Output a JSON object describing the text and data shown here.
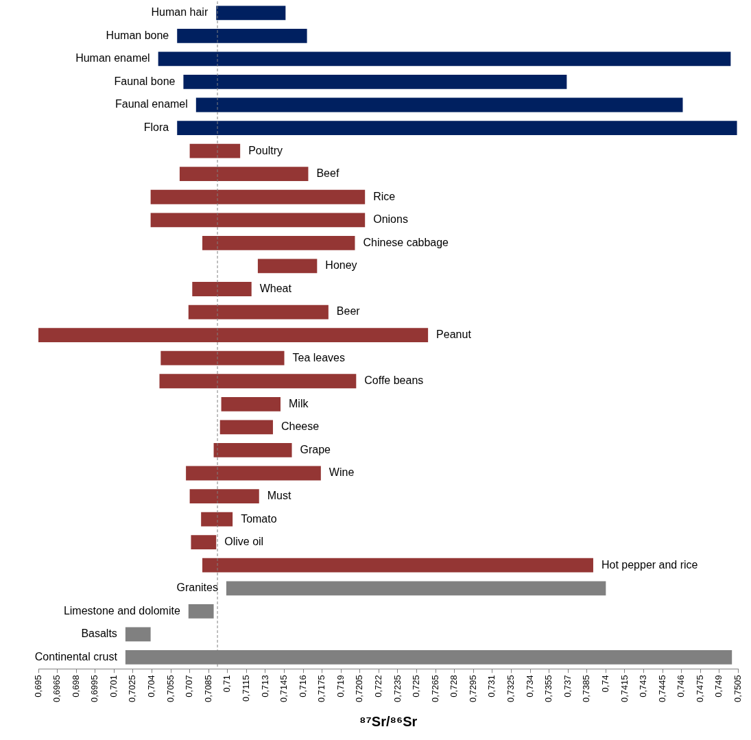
{
  "chart_data": {
    "type": "bar",
    "orientation": "horizontal",
    "xlabel": "⁸⁷Sr/⁸⁶Sr",
    "tick_labels": "x",
    "legend": false,
    "categories": [
      "Human hair",
      "Human bone",
      "Human enamel",
      "Faunal bone",
      "Faunal enamel",
      "Flora",
      "Poultry",
      "Beef",
      "Rice",
      "Onions",
      "Chinese cabbage",
      "Honey",
      "Wheat",
      "Beer",
      "Peanut",
      "Tea leaves",
      "Coffe beans",
      "Milk",
      "Cheese",
      "Grape",
      "Wine",
      "Must",
      "Tomato",
      "Olive oil",
      "Hot pepper and rice",
      "Granites",
      "Limestone and dolomite",
      "Basalts",
      "Continental crust"
    ],
    "series": [
      {
        "color": "#002060",
        "base": [
          0.7091,
          0.706,
          0.7045,
          0.7065,
          0.7075,
          0.706,
          null,
          null,
          null,
          null,
          null,
          null,
          null,
          null,
          null,
          null,
          null,
          null,
          null,
          null,
          null,
          null,
          null,
          null,
          null,
          null,
          null,
          null,
          null
        ],
        "values": [
          0.0055,
          0.0103,
          0.0454,
          0.0304,
          0.0386,
          0.0444,
          null,
          null,
          null,
          null,
          null,
          null,
          null,
          null,
          null,
          null,
          null,
          null,
          null,
          null,
          null,
          null,
          null,
          null,
          null,
          null,
          null,
          null,
          null
        ]
      },
      {
        "color": "#943634",
        "base": [
          null,
          null,
          null,
          null,
          null,
          null,
          0.707,
          0.7062,
          0.7039,
          0.7039,
          0.708,
          0.7124,
          0.7072,
          0.7069,
          0.695,
          0.7047,
          0.7046,
          0.7095,
          0.7094,
          0.7089,
          0.7067,
          0.707,
          0.7079,
          0.7071,
          0.708,
          null,
          null,
          null,
          null
        ],
        "values": [
          null,
          null,
          null,
          null,
          null,
          null,
          0.004,
          0.0102,
          0.017,
          0.017,
          0.0121,
          0.0047,
          0.0047,
          0.0111,
          0.0309,
          0.0098,
          0.0156,
          0.0047,
          0.0042,
          0.0062,
          0.0107,
          0.0055,
          0.0025,
          0.002,
          0.031,
          null,
          null,
          null,
          null
        ]
      },
      {
        "color": "#808080",
        "base": [
          null,
          null,
          null,
          null,
          null,
          null,
          null,
          null,
          null,
          null,
          null,
          null,
          null,
          null,
          null,
          null,
          null,
          null,
          null,
          null,
          null,
          null,
          null,
          null,
          null,
          0.7099,
          0.7069,
          0.7019,
          0.7019
        ],
        "values": [
          null,
          null,
          null,
          null,
          null,
          null,
          null,
          null,
          null,
          null,
          null,
          null,
          null,
          null,
          null,
          null,
          null,
          null,
          null,
          null,
          null,
          null,
          null,
          null,
          null,
          0.0301,
          0.002,
          0.002,
          0.0481
        ]
      }
    ],
    "xlim": [
      0.695,
      0.7505
    ],
    "xticks": [
      {
        "value": 0.695,
        "label": "0,695"
      },
      {
        "value": 0.6965,
        "label": "0,6965"
      },
      {
        "value": 0.698,
        "label": "0,698"
      },
      {
        "value": 0.6995,
        "label": "0,6995"
      },
      {
        "value": 0.701,
        "label": "0,701"
      },
      {
        "value": 0.7025,
        "label": "0,7025"
      },
      {
        "value": 0.704,
        "label": "0,704"
      },
      {
        "value": 0.7055,
        "label": "0,7055"
      },
      {
        "value": 0.707,
        "label": "0,707"
      },
      {
        "value": 0.7085,
        "label": "0,7085"
      },
      {
        "value": 0.71,
        "label": "0,71"
      },
      {
        "value": 0.7115,
        "label": "0,7115"
      },
      {
        "value": 0.713,
        "label": "0,713"
      },
      {
        "value": 0.7145,
        "label": "0,7145"
      },
      {
        "value": 0.716,
        "label": "0,716"
      },
      {
        "value": 0.7175,
        "label": "0,7175"
      },
      {
        "value": 0.719,
        "label": "0,719"
      },
      {
        "value": 0.7205,
        "label": "0,7205"
      },
      {
        "value": 0.722,
        "label": "0,722"
      },
      {
        "value": 0.7235,
        "label": "0,7235"
      },
      {
        "value": 0.725,
        "label": "0,725"
      },
      {
        "value": 0.7265,
        "label": "0,7265"
      },
      {
        "value": 0.728,
        "label": "0,728"
      },
      {
        "value": 0.7295,
        "label": "0,7295"
      },
      {
        "value": 0.731,
        "label": "0,731"
      },
      {
        "value": 0.7325,
        "label": "0,7325"
      },
      {
        "value": 0.734,
        "label": "0,734"
      },
      {
        "value": 0.7355,
        "label": "0,7355"
      },
      {
        "value": 0.737,
        "label": "0,737"
      },
      {
        "value": 0.7385,
        "label": "0,7385"
      },
      {
        "value": 0.74,
        "label": "0,74"
      },
      {
        "value": 0.7415,
        "label": "0,7415"
      },
      {
        "value": 0.743,
        "label": "0,743"
      },
      {
        "value": 0.7445,
        "label": "0,7445"
      },
      {
        "value": 0.746,
        "label": "0,746"
      },
      {
        "value": 0.7475,
        "label": "0,7475"
      },
      {
        "value": 0.749,
        "label": "0,749"
      },
      {
        "value": 0.7505,
        "label": "0,7505"
      }
    ],
    "ref_lines": [
      {
        "axis": "x",
        "value": 0.7092,
        "color": "#808080",
        "line_style": "dashed"
      }
    ]
  }
}
